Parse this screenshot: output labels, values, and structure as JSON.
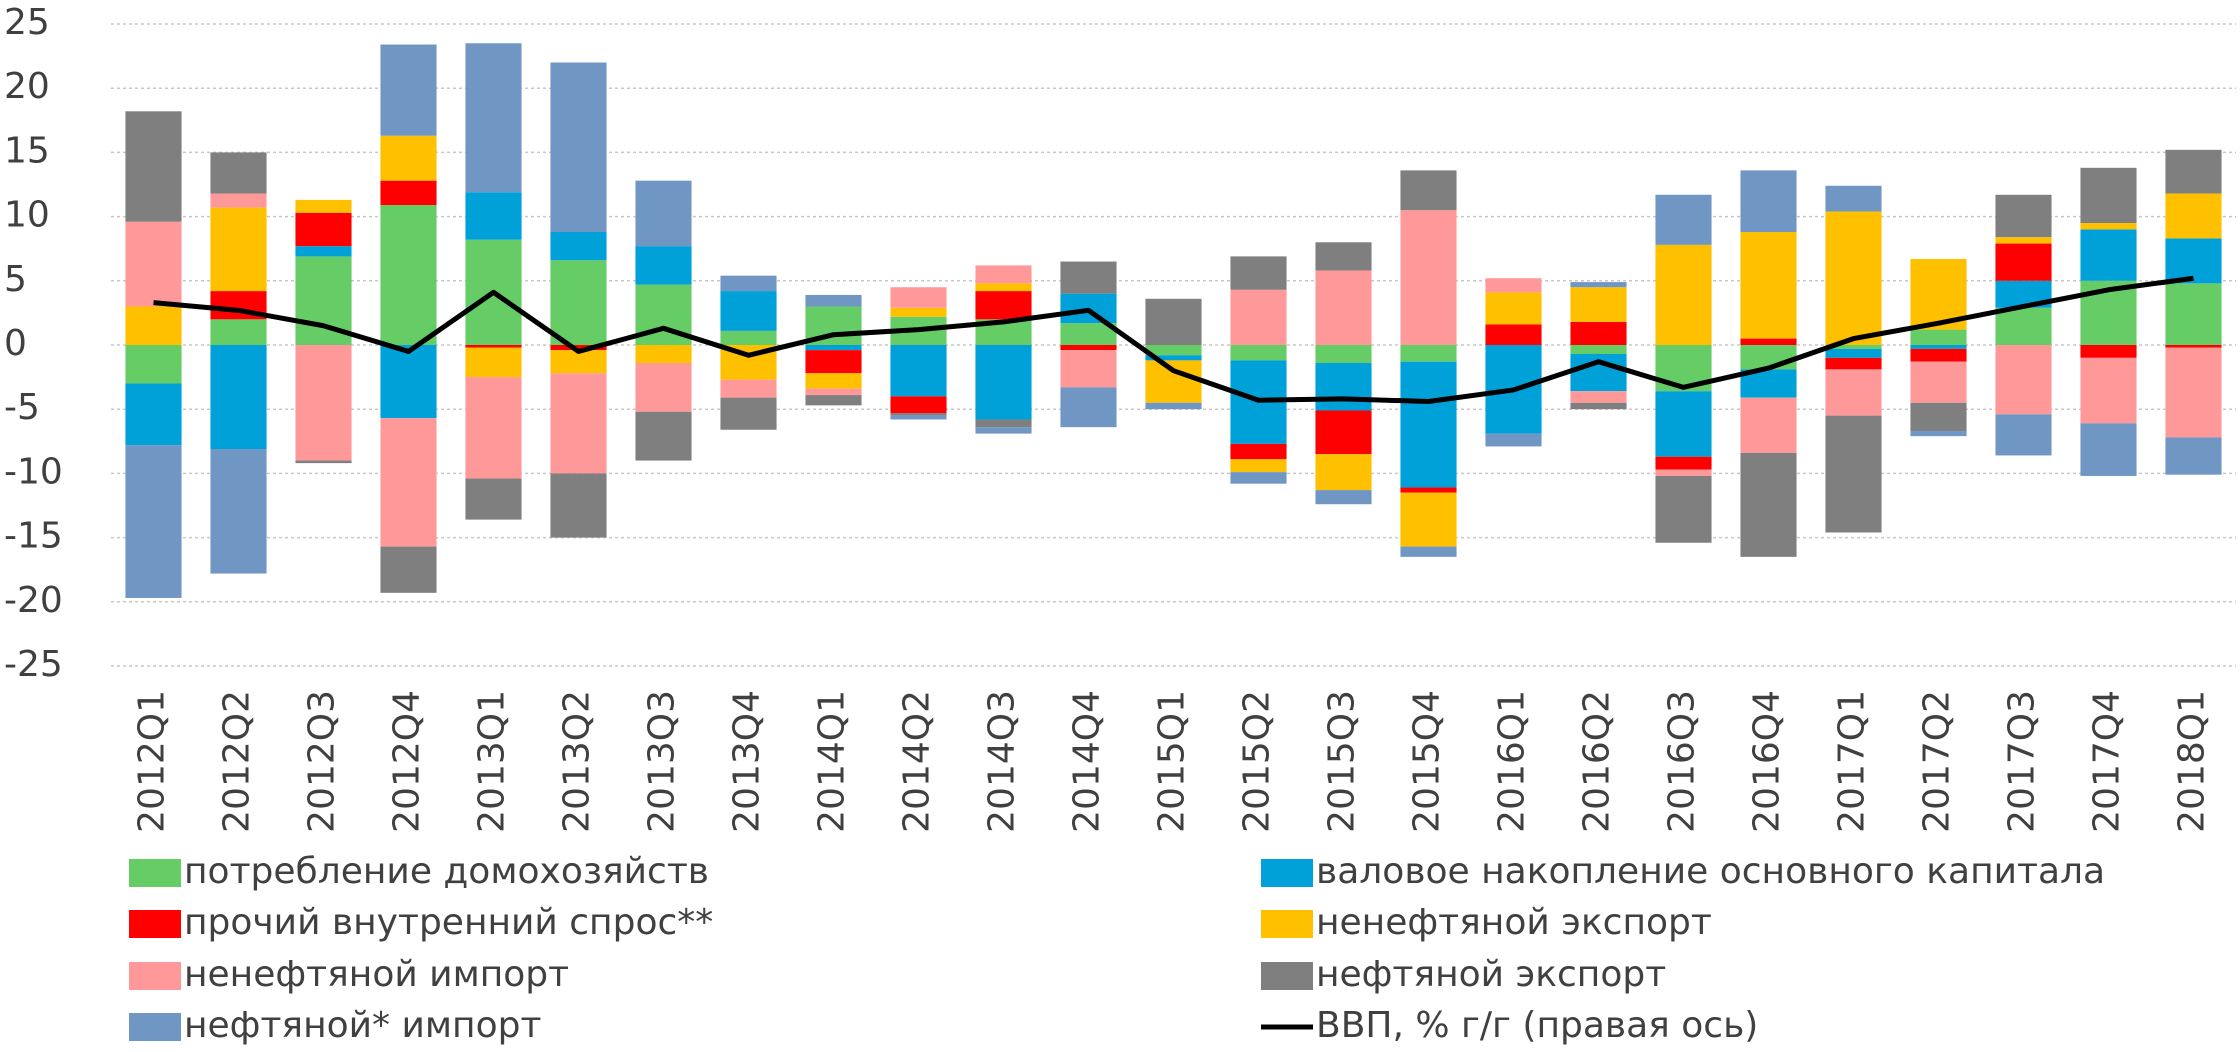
{
  "chart_data": {
    "type": "bar",
    "stacked": true,
    "categories": [
      "2012Q1",
      "2012Q2",
      "2012Q3",
      "2012Q4",
      "2013Q1",
      "2013Q2",
      "2013Q3",
      "2013Q4",
      "2014Q1",
      "2014Q2",
      "2014Q3",
      "2014Q4",
      "2015Q1",
      "2015Q2",
      "2015Q3",
      "2015Q4",
      "2016Q1",
      "2016Q2",
      "2016Q3",
      "2016Q4",
      "2017Q1",
      "2017Q2",
      "2017Q3",
      "2017Q4",
      "2018Q1"
    ],
    "ylim": [
      -25,
      25
    ],
    "yticks": [
      -25,
      -20,
      -15,
      -10,
      -5,
      0,
      5,
      10,
      15,
      20,
      25
    ],
    "grid": true,
    "legend": "bottom",
    "series": [
      {
        "name": "потребление домохозяйств",
        "color": "#66cc66",
        "values": [
          -3,
          2,
          6.9,
          10.9,
          8.2,
          6.6,
          4.7,
          1.1,
          3,
          2.2,
          2,
          1.7,
          -0.8,
          -1.2,
          -1.4,
          -1.3,
          0,
          -0.7,
          -3.6,
          -1.9,
          -0.3,
          1.2,
          2.9,
          5,
          4.8
        ]
      },
      {
        "name": "валовое накопление основного капитала",
        "color": "#00a0d8",
        "values": [
          -4.8,
          -8.1,
          0.8,
          -5.7,
          3.7,
          2.2,
          3,
          3.1,
          -0.4,
          -4,
          -5.8,
          2.3,
          -0.4,
          -6.5,
          -3.7,
          -9.8,
          -6.9,
          -2.9,
          -5.1,
          -2.2,
          -0.7,
          -0.3,
          2.1,
          4,
          3.5
        ]
      },
      {
        "name": "прочий внутренний спрос**",
        "color": "#ff0000",
        "values": [
          0,
          2.2,
          2.6,
          1.9,
          -0.2,
          -0.4,
          0,
          0,
          -1.8,
          -1.3,
          2.2,
          -0.4,
          0,
          -1.2,
          -3.4,
          -0.4,
          1.6,
          1.8,
          -1,
          0.5,
          -0.9,
          -1,
          2.9,
          -1,
          -0.2
        ]
      },
      {
        "name": "ненефтяной экспорт",
        "color": "#ffc000",
        "values": [
          3,
          6.5,
          1,
          3.5,
          -2.3,
          -1.8,
          -1.4,
          -2.7,
          -1.2,
          0.7,
          0.6,
          0,
          -3.3,
          -1,
          -2.8,
          -4.2,
          2.5,
          2.7,
          7.8,
          8.3,
          10.4,
          5.5,
          0.5,
          0.5,
          3.5
        ]
      },
      {
        "name": "ненефтяной импорт",
        "color": "#ff9999",
        "values": [
          6.6,
          1.1,
          -9,
          -10,
          -7.9,
          -7.8,
          -3.8,
          -1.4,
          -0.5,
          1.6,
          1.4,
          -2.9,
          0,
          4.3,
          5.8,
          10.5,
          1.1,
          -0.9,
          -0.5,
          -4.3,
          -3.6,
          -3.2,
          -5.4,
          -5.1,
          -7
        ]
      },
      {
        "name": "нефтяной экспорт",
        "color": "#7f7f7f",
        "values": [
          8.6,
          3.2,
          -0.2,
          -3.6,
          -3.2,
          -5,
          -3.8,
          -2.5,
          -0.8,
          -0.2,
          -0.6,
          2.5,
          3.6,
          2.6,
          2.2,
          3.1,
          0,
          -0.5,
          -5.2,
          -8.1,
          -9.1,
          -2.2,
          3.3,
          4.3,
          3.4
        ]
      },
      {
        "name": "нефтяной* импорт",
        "color": "#7096c4",
        "values": [
          -11.9,
          -9.7,
          0,
          7.1,
          11.6,
          13.2,
          5.1,
          1.2,
          0.9,
          -0.3,
          -0.5,
          -3.1,
          -0.5,
          -0.9,
          -1.1,
          -0.8,
          -1,
          0.4,
          3.9,
          4.8,
          2,
          -0.4,
          -3.2,
          -4.1,
          -2.9
        ]
      },
      {
        "name": "ВВП, % г/г (правая ось)",
        "color": "#000000",
        "type": "line",
        "values": [
          3.3,
          2.7,
          1.5,
          -0.5,
          4.1,
          -0.5,
          1.3,
          -0.8,
          0.8,
          1.2,
          1.8,
          2.7,
          -2,
          -4.3,
          -4.2,
          -4.4,
          -3.5,
          -1.3,
          -3.3,
          -1.8,
          0.5,
          1.7,
          3,
          4.3,
          5.2
        ]
      }
    ]
  }
}
